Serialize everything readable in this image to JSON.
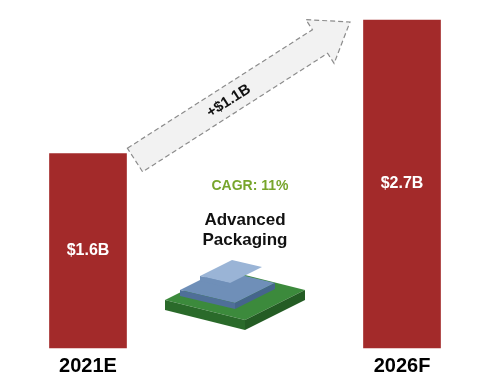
{
  "chart_data": {
    "type": "bar",
    "categories": [
      "2021E",
      "2026F"
    ],
    "values": [
      1.6,
      2.7
    ],
    "value_labels": [
      "$1.6B",
      "$2.7B"
    ],
    "data_labels": true,
    "color": "#a32a2a",
    "ylim": [
      0,
      2.7
    ],
    "tick_labels": "x",
    "grid": false,
    "annotations": [
      "+$1.1B",
      "CAGR: 11%",
      "Advanced Packaging"
    ]
  }
}
